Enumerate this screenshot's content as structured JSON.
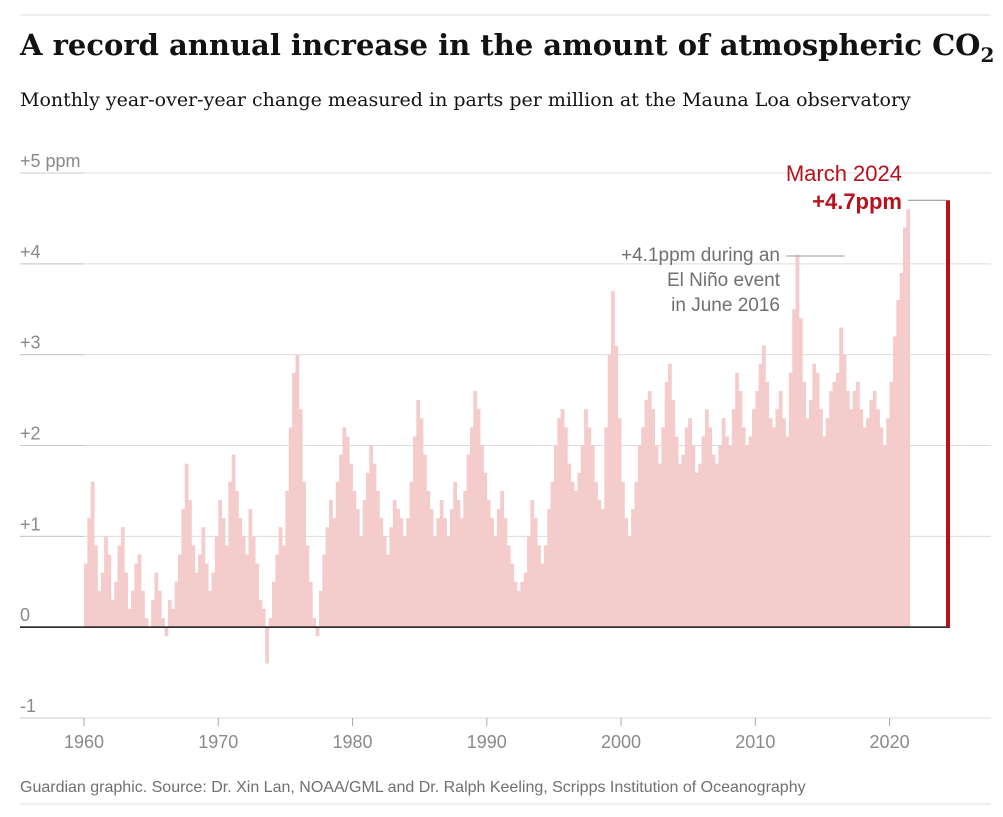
{
  "header": {
    "title_main": "A record annual increase in the amount of atmospheric CO",
    "title_sub": "2",
    "subtitle": "Monthly year-over-year change measured in parts per million at the Mauna Loa observatory"
  },
  "source": "Guardian graphic. Source: Dr. Xin Lan, NOAA/GML and Dr. Ralph Keeling, Scripps Institution of Oceanography",
  "colors": {
    "bars": "#f4cccc",
    "highlight": "#b5121b",
    "grid": "#dcdcdc",
    "baseline": "#121212",
    "text": "#121212",
    "muted": "#8a8a8a"
  },
  "chart_data": {
    "type": "bar",
    "title": "A record annual increase in the amount of atmospheric CO2",
    "subtitle": "Monthly year-over-year change measured in parts per million at the Mauna Loa observatory",
    "xlabel": "",
    "ylabel": "",
    "xlim": [
      1956,
      2024.75
    ],
    "ylim": [
      -1,
      5
    ],
    "grid": true,
    "x_ticks": [
      1960,
      1970,
      1980,
      1990,
      2000,
      2010,
      2020
    ],
    "x_tick_labels": [
      "1960",
      "1970",
      "1980",
      "1990",
      "2000",
      "2010",
      "2020"
    ],
    "y_ticks": [
      5,
      4,
      3,
      2,
      1,
      0,
      -1
    ],
    "y_tick_labels": [
      "+5 ppm",
      "+4",
      "+3",
      "+2",
      "+1",
      "0",
      "-1"
    ],
    "series": [
      {
        "x_start": 1960.0,
        "x_step": 0.25,
        "values": [
          0.7,
          1.2,
          1.6,
          0.9,
          0.4,
          0.6,
          1.0,
          0.8,
          0.3,
          0.5,
          0.9,
          1.1,
          0.6,
          0.2,
          0.4,
          0.7,
          0.8,
          0.4,
          0.1,
          0.0,
          0.3,
          0.6,
          0.4,
          0.1,
          -0.1,
          0.3,
          0.2,
          0.5,
          0.8,
          1.3,
          1.8,
          1.4,
          0.9,
          0.6,
          0.8,
          1.1,
          0.7,
          0.4,
          0.6,
          1.0,
          1.4,
          1.2,
          0.9,
          1.6,
          1.9,
          1.5,
          1.2,
          1.0,
          0.8,
          1.3,
          1.0,
          0.7,
          0.3,
          0.2,
          -0.4,
          0.1,
          0.5,
          0.8,
          1.1,
          0.9,
          1.5,
          2.2,
          2.8,
          3.0,
          2.4,
          1.6,
          0.9,
          0.5,
          0.1,
          -0.1,
          0.4,
          0.8,
          1.1,
          1.4,
          1.2,
          1.6,
          1.9,
          2.2,
          2.1,
          1.8,
          1.5,
          1.3,
          1.0,
          1.4,
          1.7,
          2.0,
          1.8,
          1.5,
          1.2,
          1.0,
          0.8,
          1.1,
          1.4,
          1.3,
          1.2,
          1.0,
          1.2,
          1.6,
          2.1,
          2.5,
          2.3,
          1.9,
          1.5,
          1.3,
          1.0,
          1.2,
          1.4,
          1.2,
          1.0,
          1.3,
          1.6,
          1.4,
          1.2,
          1.5,
          1.9,
          2.2,
          2.6,
          2.4,
          2.0,
          1.7,
          1.4,
          1.2,
          1.0,
          1.3,
          1.5,
          1.2,
          0.9,
          0.7,
          0.5,
          0.4,
          0.5,
          0.6,
          1.0,
          1.4,
          1.2,
          0.9,
          0.7,
          0.9,
          1.3,
          1.6,
          2.0,
          2.3,
          2.4,
          2.2,
          1.8,
          1.6,
          1.5,
          1.7,
          2.0,
          2.4,
          2.2,
          2.0,
          1.6,
          1.4,
          1.3,
          2.2,
          3.0,
          3.7,
          3.1,
          2.3,
          1.6,
          1.2,
          1.0,
          1.3,
          1.6,
          2.0,
          2.2,
          2.5,
          2.6,
          2.4,
          2.0,
          1.8,
          2.2,
          2.7,
          2.9,
          2.5,
          2.1,
          1.8,
          1.9,
          2.2,
          2.3,
          2.0,
          1.7,
          1.8,
          2.1,
          2.4,
          2.2,
          1.9,
          1.8,
          2.0,
          2.3,
          2.1,
          2.0,
          2.4,
          2.8,
          2.6,
          2.2,
          2.0,
          2.1,
          2.4,
          2.6,
          2.9,
          3.1,
          2.7,
          2.3,
          2.2,
          2.4,
          2.6,
          2.3,
          2.1,
          2.8,
          3.5,
          4.1,
          3.4,
          2.7,
          2.3,
          2.5,
          2.9,
          2.8,
          2.4,
          2.1,
          2.3,
          2.6,
          2.7,
          2.8,
          3.3,
          3.0,
          2.6,
          2.4,
          2.6,
          2.7,
          2.4,
          2.2,
          2.3,
          2.5,
          2.6,
          2.4,
          2.2,
          2.0,
          2.3,
          2.7,
          3.2,
          3.6,
          3.9,
          4.4,
          4.6,
          4.7
        ]
      }
    ],
    "annotations": [
      {
        "text_lines": [
          "+4.1ppm during an",
          "El Niño event",
          "in June 2016"
        ],
        "x": 2016.5,
        "y": 4.1
      }
    ],
    "highlight": {
      "label_line1": "March 2024",
      "label_line2": "+4.7ppm",
      "x": 2024.25,
      "y": 4.7
    }
  }
}
